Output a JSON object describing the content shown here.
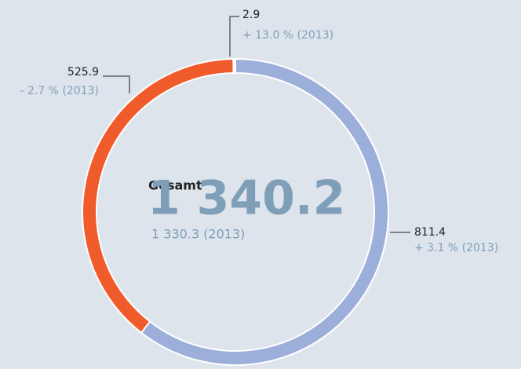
{
  "chart_data": {
    "type": "donut",
    "series": [
      {
        "values": [
          811.4,
          525.9,
          2.9
        ],
        "colors": [
          "#9bafda",
          "#f05b2b",
          "#f2f4f6"
        ],
        "changes": [
          "+ 3.1 % (2013)",
          "- 2.7 % (2013)",
          "+ 13.0 % (2013)"
        ]
      }
    ],
    "center_title": "Gesamt",
    "center_value": "1 340.2",
    "center_note": "1 330.3 (2013)"
  }
}
